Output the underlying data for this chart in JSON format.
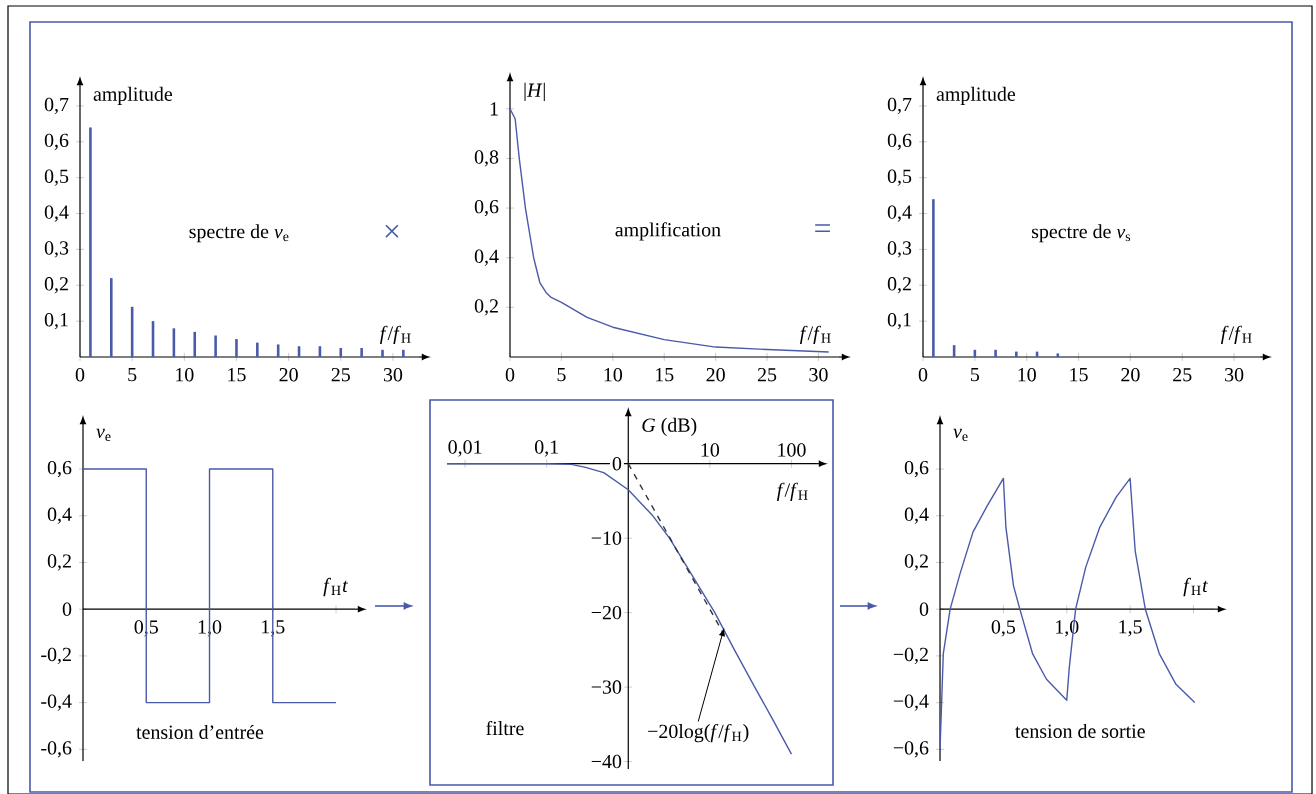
{
  "chart_data": [
    {
      "type": "bar",
      "ylabel": "amplitude",
      "xlabel": "*f*/*f*$_{H}$",
      "annotations": [
        "spectre de *v*$_{e}$",
        "×"
      ],
      "x": [
        1,
        3,
        5,
        7,
        9,
        11,
        13,
        15,
        17,
        19,
        21,
        23,
        25,
        27,
        29,
        31
      ],
      "values": [
        0.64,
        0.22,
        0.14,
        0.1,
        0.08,
        0.07,
        0.06,
        0.05,
        0.04,
        0.035,
        0.03,
        0.03,
        0.025,
        0.025,
        0.02,
        0.02
      ],
      "color": "#4a5aa8",
      "xlim": [
        0,
        32.5
      ],
      "ylim": [
        0,
        0.75
      ],
      "xticks": [
        0,
        5,
        10,
        15,
        20,
        25,
        30
      ],
      "yticks": [
        {
          "value": 0.1,
          "label": "0,1"
        },
        {
          "value": 0.2,
          "label": "0,2"
        },
        {
          "value": 0.3,
          "label": "0,3"
        },
        {
          "value": 0.4,
          "label": "0,4"
        },
        {
          "value": 0.5,
          "label": "0,5"
        },
        {
          "value": 0.6,
          "label": "0,6"
        },
        {
          "value": 0.7,
          "label": "0,7"
        }
      ]
    },
    {
      "type": "line",
      "ylabel": "|*H*|",
      "xlabel": "*f*/*f*$_{H}$",
      "annotations": [
        "amplification",
        "="
      ],
      "x": [
        0,
        0.5,
        0.9,
        1.5,
        2.3,
        2.9,
        3.5,
        4,
        5,
        7.5,
        10,
        15,
        20,
        25,
        31
      ],
      "values": [
        1,
        0.96,
        0.8,
        0.6,
        0.4,
        0.3,
        0.26,
        0.24,
        0.22,
        0.16,
        0.12,
        0.07,
        0.04,
        0.03,
        0.02
      ],
      "color": "#4a5aa8",
      "xlim": [
        0,
        32
      ],
      "ylim": [
        0,
        1.1
      ],
      "xticks": [
        0,
        5,
        10,
        15,
        20,
        25,
        30
      ],
      "yticks": [
        {
          "value": 0.2,
          "label": "0,2"
        },
        {
          "value": 0.4,
          "label": "0,4"
        },
        {
          "value": 0.6,
          "label": "0,6"
        },
        {
          "value": 0.8,
          "label": "0,8"
        },
        1
      ]
    },
    {
      "type": "bar",
      "ylabel": "amplitude",
      "xlabel": "*f*/*f*$_{H}$",
      "annotations": [
        "spectre de *v*$_{s}$"
      ],
      "x": [
        1,
        3,
        5,
        7,
        9,
        11,
        13
      ],
      "values": [
        0.44,
        0.033,
        0.02,
        0.02,
        0.015,
        0.015,
        0.01
      ],
      "color": "#4a5aa8",
      "xlim": [
        0,
        32.5
      ],
      "ylim": [
        0,
        0.75
      ],
      "xticks": [
        0,
        5,
        10,
        15,
        20,
        25,
        30
      ],
      "yticks": [
        {
          "value": 0.1,
          "label": "0,1"
        },
        {
          "value": 0.2,
          "label": "0,2"
        },
        {
          "value": 0.3,
          "label": "0,3"
        },
        {
          "value": 0.4,
          "label": "0,4"
        },
        {
          "value": 0.5,
          "label": "0,5"
        },
        {
          "value": 0.6,
          "label": "0,6"
        },
        {
          "value": 0.7,
          "label": "0,7"
        }
      ]
    },
    {
      "type": "step",
      "ylabel": "*v*$_{e}$",
      "xlabel": "*f*$_{H}$*t*",
      "annotations": [
        "tension d’entrée"
      ],
      "x": [
        0,
        0.5,
        1,
        1.5,
        2
      ],
      "values": [
        0.6,
        -0.4,
        0.6,
        -0.4,
        -0.4
      ],
      "color": "#4a5aa8",
      "xlim": [
        0,
        2.15
      ],
      "ylim": [
        -0.65,
        0.78
      ],
      "xticks": [
        {
          "value": 0.5,
          "label": "0,5"
        },
        {
          "value": 1,
          "label": "1,0"
        },
        {
          "value": 1.5,
          "label": "1,5"
        },
        {
          "value": 2,
          "label": null
        }
      ],
      "yticks": [
        {
          "value": -0.6,
          "label": "-0,6"
        },
        {
          "value": -0.4,
          "label": "-0,4"
        },
        {
          "value": -0.2,
          "label": "-0,2"
        },
        0,
        {
          "value": 0.2,
          "label": "0,2"
        },
        {
          "value": 0.4,
          "label": "0,4"
        },
        {
          "value": 0.6,
          "label": "0,6"
        }
      ]
    },
    {
      "type": "line",
      "log": "x",
      "ylabel": "*G* (dB)",
      "xlabel": "*f*/*f*$_{H}$",
      "annotations": [
        "filtre",
        {
          "text": "−20log(*f*/*f*$_{H}$)",
          "x": 15,
          "y": -22
        }
      ],
      "xlim": [
        0.006,
        200
      ],
      "ylim": [
        -41,
        6
      ],
      "xticks": [
        {
          "value": 0.01,
          "label": "0,01"
        },
        {
          "value": 0.1,
          "label": "0,1"
        },
        {
          "value": 1,
          "label": null
        },
        10,
        100
      ],
      "yticks": [
        {
          "value": -40,
          "label": "−40"
        },
        {
          "value": -30,
          "label": "−30"
        },
        {
          "value": -20,
          "label": "−20"
        },
        {
          "value": -10,
          "label": "−10"
        },
        0
      ],
      "series": [
        {
          "color": "#4a5aa8",
          "x": [
            0.006,
            0.1,
            0.2,
            0.3,
            0.5,
            1,
            2,
            3.2,
            5,
            11.5,
            20,
            35.5,
            60,
            100
          ],
          "values": [
            0,
            0,
            -0.1,
            -0.5,
            -1.2,
            -3.5,
            -7,
            -10,
            -13.5,
            -20,
            -25,
            -30,
            -34.5,
            -39
          ]
        },
        {
          "color": "#333333",
          "line_style": "dashed",
          "x": [
            1,
            15
          ],
          "values": [
            0,
            -23
          ]
        }
      ]
    },
    {
      "type": "line",
      "ylabel": "*v*$_{e}$",
      "xlabel": "*f*$_{H}$*t*",
      "annotations": [
        "tension de sortie"
      ],
      "x": [
        0,
        0.026,
        0.08,
        0.157,
        0.26,
        0.37,
        0.5,
        0.52,
        0.58,
        0.63,
        0.73,
        0.84,
        1,
        1.02,
        1.07,
        1.15,
        1.26,
        1.39,
        1.5,
        1.54,
        1.62,
        1.73,
        1.86,
        2.01
      ],
      "values": [
        -0.6,
        -0.19,
        0,
        0.15,
        0.33,
        0.44,
        0.56,
        0.35,
        0.1,
        0,
        -0.19,
        -0.3,
        -0.39,
        -0.25,
        0,
        0.18,
        0.35,
        0.48,
        0.56,
        0.25,
        0,
        -0.19,
        -0.32,
        -0.4
      ],
      "color": "#4a5aa8",
      "xlim": [
        0,
        2.17
      ],
      "ylim": [
        -0.65,
        0.78
      ],
      "xticks": [
        {
          "value": 0.5,
          "label": "0,5"
        },
        {
          "value": 1,
          "label": "1,0"
        },
        {
          "value": 1.5,
          "label": "1,5"
        },
        {
          "value": 2,
          "label": null
        }
      ],
      "yticks": [
        {
          "value": -0.6,
          "label": "−0,6"
        },
        {
          "value": -0.4,
          "label": "−0,4"
        },
        {
          "value": -0.2,
          "label": "−0,2"
        },
        0,
        {
          "value": 0.2,
          "label": "0,2"
        },
        {
          "value": 0.4,
          "label": "0,4"
        },
        {
          "value": 0.6,
          "label": "0,6"
        }
      ]
    }
  ]
}
